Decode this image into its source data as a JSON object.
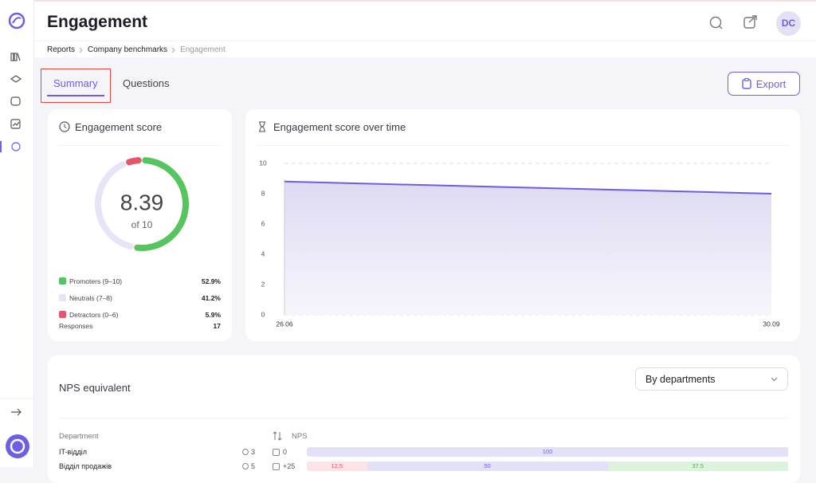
{
  "header": {
    "title": "Engagement",
    "avatar": "DC"
  },
  "breadcrumb": [
    "Reports",
    "Company benchmarks",
    "Engagement"
  ],
  "tabs": [
    "Summary",
    "Questions"
  ],
  "export_button": "Export",
  "chart_data": [
    {
      "type": "pie",
      "title": "Engagement score",
      "center_value": 8.39,
      "center_label": "of 10",
      "categories": [
        "Promoters (9–10)",
        "Neutrals (7–8)",
        "Detractors (0–6)"
      ],
      "values": [
        52.9,
        41.2,
        5.9
      ],
      "value_labels": [
        "52.9%",
        "41.2%",
        "5.9%"
      ],
      "colors": [
        "#56c45f",
        "#e6e4f6",
        "#e4566b"
      ],
      "responses_label": "Responses",
      "responses": 17
    },
    {
      "type": "line",
      "title": "Engagement score over time",
      "x": [
        "26.06",
        "30.09"
      ],
      "values": [
        8.8,
        8.0
      ],
      "color": "#6d5fe3",
      "ylim": [
        0,
        10
      ],
      "yticks": [
        0,
        2,
        4,
        6,
        8,
        10
      ],
      "grid": true
    }
  ],
  "nps": {
    "title": "NPS equivalent",
    "dropdown": "By departments",
    "columns": [
      "Department",
      "NPS"
    ],
    "rows": [
      {
        "department": "IT-відділ",
        "respondents": 3,
        "nps": 0,
        "segments": [
          100
        ],
        "segment_colors": [
          "#e3e1f7"
        ],
        "segment_text_colors": [
          "#6d5fe3"
        ]
      },
      {
        "department": "Відділ продажів",
        "respondents": 5,
        "nps": 25,
        "nps_label": "+25",
        "segments": [
          12.5,
          50,
          37.5
        ],
        "segment_colors": [
          "#fde3e6",
          "#e3e1f7",
          "#dcf3de"
        ],
        "segment_text_colors": [
          "#e4566b",
          "#6d5fe3",
          "#4caa55"
        ]
      }
    ]
  }
}
